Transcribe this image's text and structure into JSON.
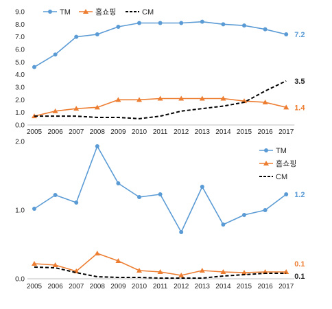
{
  "colors": {
    "tm": "#5B9BD5",
    "home": "#ED7D31",
    "cm": "#000000",
    "axis": "#BFBFBF"
  },
  "chart_data": [
    {
      "type": "line",
      "categories": [
        "2005",
        "2006",
        "2007",
        "2008",
        "2009",
        "2010",
        "2011",
        "2012",
        "2013",
        "2014",
        "2015",
        "2016",
        "2017"
      ],
      "ylim": [
        0,
        9
      ],
      "yticks": [
        "0.0",
        "1.0",
        "2.0",
        "3.0",
        "4.0",
        "5.0",
        "6.0",
        "7.0",
        "8.0",
        "9.0"
      ],
      "grid": false,
      "legend": "top-left",
      "series": [
        {
          "name": "TM",
          "key": "tm",
          "marker": "circle",
          "style": "solid",
          "values": [
            4.6,
            5.6,
            7.0,
            7.2,
            7.8,
            8.1,
            8.1,
            8.1,
            8.2,
            8.0,
            7.9,
            7.6,
            7.2
          ],
          "end_label": "7.2"
        },
        {
          "name": "홈쇼핑",
          "key": "home",
          "marker": "triangle",
          "style": "solid",
          "values": [
            0.7,
            1.1,
            1.3,
            1.4,
            2.0,
            2.0,
            2.1,
            2.1,
            2.1,
            2.1,
            1.9,
            1.8,
            1.4
          ],
          "end_label": "1.4"
        },
        {
          "name": "CM",
          "key": "cm",
          "marker": "none",
          "style": "dashed",
          "values": [
            0.7,
            0.7,
            0.7,
            0.6,
            0.6,
            0.5,
            0.7,
            1.1,
            1.3,
            1.5,
            1.8,
            2.7,
            3.5
          ],
          "end_label": "3.5"
        }
      ]
    },
    {
      "type": "line",
      "categories": [
        "2005",
        "2006",
        "2007",
        "2008",
        "2009",
        "2010",
        "2011",
        "2012",
        "2013",
        "2014",
        "2015",
        "2016",
        "2017"
      ],
      "ylim": [
        0,
        2
      ],
      "yticks": [
        "0.0",
        "1.0",
        "2.0"
      ],
      "grid": false,
      "legend": "right",
      "series": [
        {
          "name": "TM",
          "key": "tm",
          "marker": "circle",
          "style": "solid",
          "values": [
            1.02,
            1.22,
            1.11,
            1.93,
            1.39,
            1.19,
            1.23,
            0.68,
            1.34,
            0.79,
            0.93,
            1.0,
            1.23
          ],
          "end_label": "1.2"
        },
        {
          "name": "홈쇼핑",
          "key": "home",
          "marker": "triangle",
          "style": "solid",
          "values": [
            0.22,
            0.2,
            0.11,
            0.37,
            0.26,
            0.12,
            0.1,
            0.05,
            0.12,
            0.1,
            0.09,
            0.1,
            0.1
          ],
          "end_label": "0.1"
        },
        {
          "name": "CM",
          "key": "cm",
          "marker": "none",
          "style": "dashed",
          "values": [
            0.17,
            0.16,
            0.09,
            0.03,
            0.02,
            0.02,
            0.01,
            0.01,
            0.01,
            0.04,
            0.06,
            0.08,
            0.08
          ],
          "end_label": "0.1"
        }
      ]
    }
  ]
}
